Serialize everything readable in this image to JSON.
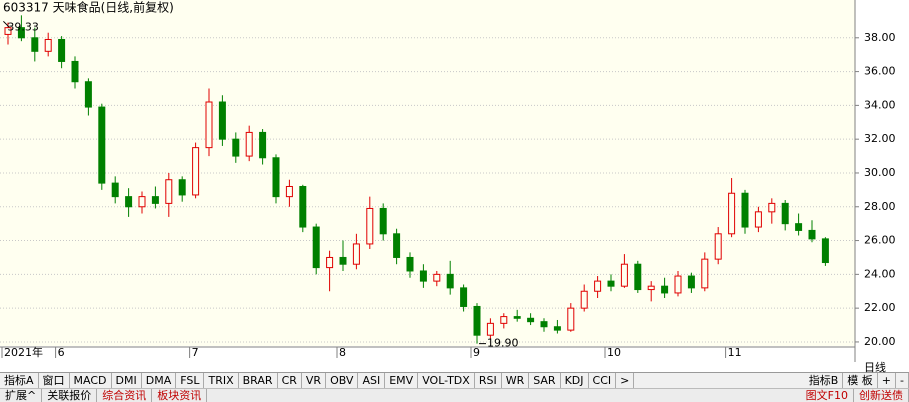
{
  "chart_data": {
    "type": "candlestick",
    "title": "603317 天味食品(日线,前复权)",
    "categories": [
      "2021年",
      null,
      null,
      null,
      "6",
      null,
      null,
      null,
      null,
      null,
      null,
      null,
      null,
      null,
      "7",
      null,
      null,
      null,
      null,
      null,
      null,
      null,
      null,
      null,
      null,
      "8",
      null,
      null,
      null,
      null,
      null,
      null,
      null,
      null,
      null,
      "9",
      null,
      null,
      null,
      null,
      null,
      null,
      null,
      null,
      null,
      "10",
      null,
      null,
      null,
      null,
      null,
      null,
      null,
      null,
      "11",
      null,
      null,
      null,
      null,
      null,
      null,
      null
    ],
    "open": [
      38.2,
      38.6,
      38.0,
      37.2,
      37.9,
      36.6,
      35.4,
      33.9,
      29.4,
      28.6,
      28.0,
      28.6,
      28.2,
      29.6,
      28.7,
      31.5,
      34.2,
      32.0,
      31.0,
      32.4,
      30.9,
      28.6,
      29.2,
      26.8,
      24.4,
      25.0,
      24.6,
      25.8,
      27.9,
      26.4,
      25.0,
      24.2,
      23.6,
      24.0,
      23.2,
      22.1,
      20.4,
      21.1,
      21.5,
      21.4,
      21.2,
      20.9,
      20.7,
      22.0,
      23.0,
      23.6,
      23.3,
      24.6,
      23.1,
      23.3,
      22.9,
      23.9,
      23.2,
      24.9,
      26.4,
      28.8,
      26.8,
      27.7,
      28.2,
      27.0,
      26.6,
      26.1
    ],
    "high": [
      38.9,
      39.33,
      38.6,
      38.3,
      38.1,
      36.9,
      35.6,
      34.1,
      29.8,
      29.1,
      28.9,
      29.2,
      30.0,
      29.8,
      31.8,
      35.0,
      34.6,
      32.4,
      32.8,
      32.6,
      31.1,
      29.6,
      29.3,
      27.0,
      25.4,
      26.0,
      26.4,
      28.6,
      28.2,
      26.7,
      25.3,
      24.6,
      24.2,
      24.8,
      23.4,
      22.3,
      21.4,
      21.7,
      21.9,
      21.7,
      21.4,
      21.3,
      22.3,
      23.4,
      23.9,
      24.0,
      25.2,
      24.8,
      23.6,
      23.8,
      24.2,
      24.1,
      25.3,
      26.8,
      29.7,
      29.0,
      28.0,
      28.5,
      28.4,
      27.6,
      27.2,
      26.2
    ],
    "low": [
      37.6,
      37.8,
      36.6,
      36.9,
      36.2,
      35.0,
      33.4,
      29.0,
      28.2,
      27.4,
      27.6,
      27.9,
      27.4,
      28.3,
      28.5,
      31.0,
      31.6,
      30.6,
      30.7,
      30.5,
      28.2,
      28.0,
      26.5,
      24.0,
      23.0,
      24.2,
      24.3,
      25.5,
      26.0,
      24.6,
      23.8,
      23.2,
      23.3,
      22.8,
      21.8,
      19.9,
      20.2,
      20.8,
      21.2,
      21.0,
      20.6,
      20.5,
      20.6,
      21.8,
      22.6,
      23.0,
      23.2,
      22.9,
      22.4,
      22.6,
      22.7,
      22.9,
      23.0,
      24.6,
      26.2,
      26.4,
      26.5,
      27.0,
      26.6,
      26.3,
      25.9,
      24.5
    ],
    "close": [
      38.6,
      38.0,
      37.2,
      37.9,
      36.6,
      35.4,
      33.9,
      29.4,
      28.6,
      28.0,
      28.6,
      28.2,
      29.6,
      28.7,
      31.5,
      34.2,
      32.0,
      31.0,
      32.4,
      30.9,
      28.6,
      29.2,
      26.8,
      24.4,
      25.0,
      24.6,
      25.8,
      27.9,
      26.4,
      25.0,
      24.2,
      23.6,
      24.0,
      23.2,
      22.1,
      20.4,
      21.1,
      21.5,
      21.4,
      21.2,
      20.9,
      20.7,
      22.0,
      23.0,
      23.6,
      23.3,
      24.6,
      23.1,
      23.3,
      22.9,
      23.9,
      23.2,
      24.9,
      26.4,
      28.8,
      26.8,
      27.7,
      28.2,
      27.0,
      26.6,
      26.1,
      24.7
    ],
    "up_color": "#e00000",
    "down_color": "#008000",
    "ylim": [
      19.76,
      40
    ],
    "yticks": [
      {
        "value": 20,
        "label": "20.00"
      },
      {
        "value": 22,
        "label": "22.00"
      },
      {
        "value": 24,
        "label": "24.00"
      },
      {
        "value": 26,
        "label": "26.00"
      },
      {
        "value": 28,
        "label": "28.00"
      },
      {
        "value": 30,
        "label": "30.00"
      },
      {
        "value": 32,
        "label": "32.00"
      },
      {
        "value": 34,
        "label": "34.00"
      },
      {
        "value": 36,
        "label": "36.00"
      },
      {
        "value": 38,
        "label": "38.00"
      }
    ],
    "grid": true,
    "max_label": {
      "value": 39.33,
      "label": "39.33"
    },
    "min_label": {
      "value": 19.9,
      "label": "19.90"
    },
    "period": "日线"
  },
  "toolbar": {
    "tabs": [
      "指标A",
      "窗口",
      "MACD",
      "DMI",
      "DMA",
      "FSL",
      "TRIX",
      "BRAR",
      "CR",
      "VR",
      "OBV",
      "ASI",
      "EMV",
      "VOL-TDX",
      "RSI",
      "WR",
      "SAR",
      "KDJ",
      "CCI",
      ">"
    ],
    "right": [
      "指标B",
      "模 板",
      "+",
      "-"
    ]
  },
  "bottom": {
    "tabs": [
      "扩展^",
      "关联报价",
      "综合资讯",
      "板块资讯"
    ],
    "right": [
      "图文F10",
      "创新送债"
    ]
  }
}
